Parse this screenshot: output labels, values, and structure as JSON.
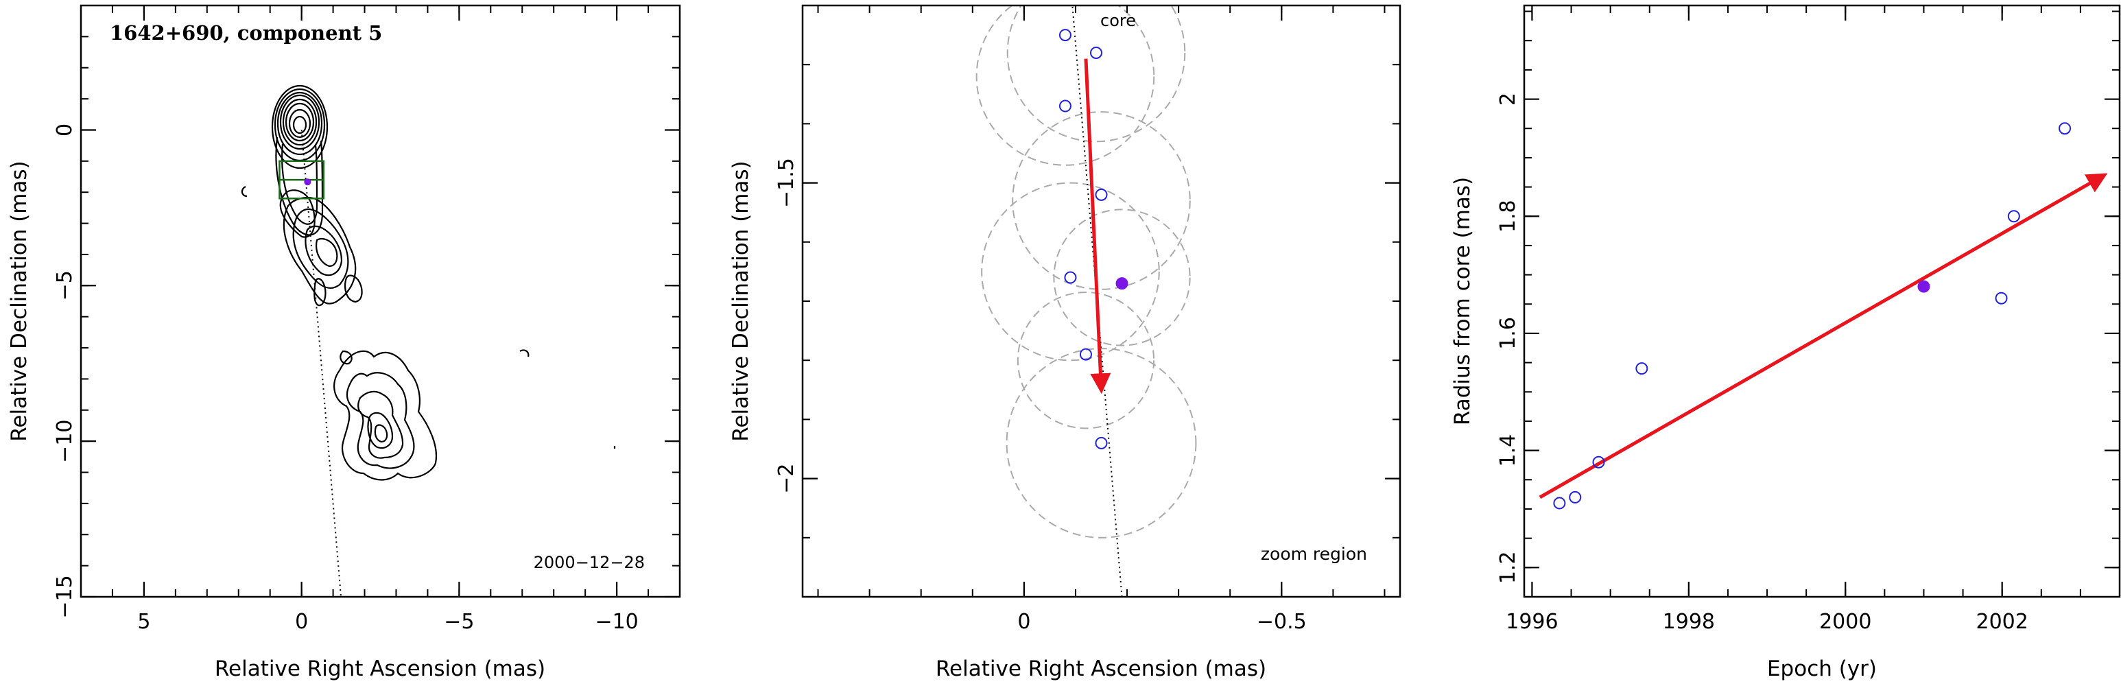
{
  "chart_data": [
    {
      "type": "contour",
      "title": "1642+690, component 5",
      "annotation": "2000−12−28",
      "xlabel": "Relative Right Ascension (mas)",
      "ylabel": "Relative Declination (mas)",
      "xlim": [
        7,
        -12
      ],
      "ylim": [
        -15,
        4
      ],
      "xticks": [
        "5",
        "0",
        "−5",
        "−10"
      ],
      "yticks": [
        "0",
        "−5",
        "−10",
        "−15"
      ],
      "jet_line": [
        [
          0,
          0
        ],
        [
          -1.25,
          -15
        ]
      ],
      "zoom_box": {
        "ra": [
          0.7,
          -0.7
        ],
        "dec": [
          -1.0,
          -2.2
        ]
      },
      "highlight": {
        "ra": -0.19,
        "dec": -1.67
      }
    },
    {
      "type": "scatter",
      "core_label": "core",
      "annotation": "zoom region",
      "xlabel": "Relative Right Ascension (mas)",
      "ylabel": "Relative Declination (mas)",
      "xlim": [
        0.43,
        -0.73
      ],
      "ylim": [
        -2.2,
        -1.2
      ],
      "xticks": [
        "0",
        "−0.5"
      ],
      "yticks": [
        "−1.5",
        "−2"
      ],
      "points": [
        {
          "ra": -0.08,
          "dec": -1.25
        },
        {
          "ra": -0.14,
          "dec": -1.28
        },
        {
          "ra": -0.08,
          "dec": -1.37
        },
        {
          "ra": -0.15,
          "dec": -1.52
        },
        {
          "ra": -0.09,
          "dec": -1.66
        },
        {
          "ra": -0.12,
          "dec": -1.79
        },
        {
          "ra": -0.15,
          "dec": -1.94
        }
      ],
      "highlight": {
        "ra": -0.19,
        "dec": -1.67
      },
      "circles": [
        {
          "ra": -0.14,
          "dec": -1.28,
          "r": 0.15
        },
        {
          "ra": -0.08,
          "dec": -1.32,
          "r": 0.15
        },
        {
          "ra": -0.15,
          "dec": -1.53,
          "r": 0.15
        },
        {
          "ra": -0.09,
          "dec": -1.65,
          "r": 0.15
        },
        {
          "ra": -0.19,
          "dec": -1.66,
          "r": 0.115
        },
        {
          "ra": -0.12,
          "dec": -1.8,
          "r": 0.115
        },
        {
          "ra": -0.15,
          "dec": -1.94,
          "r": 0.16
        }
      ],
      "jet_line": [
        [
          -0.09,
          -1.16
        ],
        [
          -0.19,
          -2.2
        ]
      ],
      "motion_vector": {
        "from": [
          -0.12,
          -1.29
        ],
        "to": [
          -0.15,
          -1.85
        ]
      }
    },
    {
      "type": "scatter",
      "xlabel": "Epoch (yr)",
      "ylabel": "Radius from core (mas)",
      "xlim": [
        1995.9,
        2003.5
      ],
      "ylim": [
        1.15,
        2.16
      ],
      "xticks": [
        "1996",
        "1998",
        "2000",
        "2002"
      ],
      "yticks": [
        "1.2",
        "1.4",
        "1.6",
        "1.8",
        "2"
      ],
      "points": [
        {
          "x": 1996.35,
          "y": 1.31
        },
        {
          "x": 1996.55,
          "y": 1.32
        },
        {
          "x": 1996.85,
          "y": 1.38
        },
        {
          "x": 1997.4,
          "y": 1.54
        },
        {
          "x": 2001.99,
          "y": 1.66
        },
        {
          "x": 2002.15,
          "y": 1.8
        },
        {
          "x": 2002.8,
          "y": 1.95
        }
      ],
      "highlight": {
        "x": 2001.0,
        "y": 1.68
      },
      "fit_line": {
        "from": [
          1996.1,
          1.32
        ],
        "to": [
          2003.3,
          1.87
        ]
      }
    }
  ],
  "colors": {
    "axis": "#000000",
    "open_marker": "#2222dd",
    "filled_marker": "#7a16e6",
    "arrow": "#e8141e",
    "circle": "#aaaaaa",
    "box": "#1a6b1a"
  }
}
